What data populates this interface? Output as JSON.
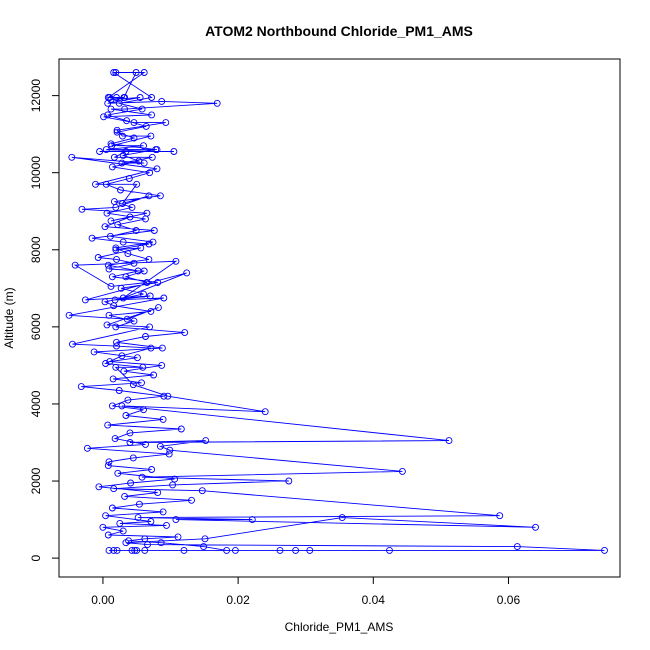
{
  "chart_data": {
    "type": "line",
    "title": "ATOM2 Northbound Chloride_PM1_AMS",
    "xlabel": "Chloride_PM1_AMS",
    "ylabel": "Altitude (m)",
    "xlim": [
      -0.0065,
      0.0765
    ],
    "ylim": [
      -490,
      12950
    ],
    "x_ticks": [
      0.0,
      0.02,
      0.04,
      0.06
    ],
    "x_tick_labels": [
      "0.00",
      "0.02",
      "0.04",
      "0.06"
    ],
    "y_ticks": [
      0,
      2000,
      4000,
      6000,
      8000,
      10000,
      12000
    ],
    "y_tick_labels": [
      "0",
      "2000",
      "4000",
      "6000",
      "8000",
      "10000",
      "12000"
    ],
    "grid": false,
    "legend": "none",
    "marker": "open-circle",
    "color": "#0000ff",
    "series": [
      {
        "x": [
          0.0019,
          0.0061,
          0.0008,
          0.002,
          0.0032,
          0.0012,
          0.0055,
          0.0007,
          0.0087,
          0.0169,
          0.0032,
          0.0012,
          0.0072,
          0.0001,
          0.0046,
          0.0093,
          0.0021,
          0.0029,
          0.0071,
          0.0013,
          0.006,
          0.0005,
          0.008,
          -0.0005,
          0.0105,
          0.0034,
          0.0017,
          0.0073,
          0.0028,
          0.0061,
          -0.0046,
          0.008,
          -0.0011,
          0.005,
          0.0029,
          0.0068,
          0.0019,
          -0.0031,
          0.0065,
          0.0012,
          0.004,
          0.0003,
          0.0076,
          -0.0016,
          0.003,
          0.0068,
          0.0019,
          0.0056,
          -0.0007,
          0.002,
          0.0046,
          0.0009,
          0.0061,
          0.0034,
          0.0065,
          0.0012,
          -0.0041,
          0.0108,
          0.003,
          0.0124,
          -0.0026,
          0.007,
          0.0018,
          0.009,
          -0.005,
          0.0036,
          0.0082,
          0.0006,
          0.0069,
          -0.0045,
          0.002,
          0.0071,
          0.0028,
          0.0004,
          0.0059,
          0.0019,
          0.0045,
          0.0096,
          0.024,
          0.0028,
          0.0512,
          0.004,
          0.0152,
          0.0085,
          0.0099,
          0.0443,
          0.0058,
          0.0275,
          0.0103,
          0.0016,
          0.0147,
          0.0587,
          0.0052,
          0.0221,
          0.0108,
          0.064,
          0.0354,
          0.0151,
          0.0034,
          0.0066,
          0.0613,
          0.0742,
          0.0062,
          0.005,
          0.0424,
          0.0043,
          0.0306,
          0.0016,
          0.0285,
          0.0009,
          0.0262,
          0.012,
          0.0021,
          0.0196,
          0.0047,
          0.0183,
          0.0149,
          0.0086,
          0.0038,
          0.0062,
          0.0111,
          0.0008,
          0.003,
          0.0,
          0.0094,
          0.0025,
          0.0071,
          0.0004,
          0.0089,
          0.0014,
          0.0054,
          0.0131,
          0.0032,
          0.0081,
          -0.0006,
          0.0041,
          0.0106,
          0.0022,
          0.0072,
          0.0008,
          0.0009,
          0.0045,
          0.0098,
          -0.0023,
          0.0063,
          0.0018,
          0.004,
          0.0116,
          0.0007,
          0.0089,
          0.0034,
          0.006,
          0.0014,
          0.0037,
          0.009,
          0.0024,
          -0.0032,
          0.0057,
          0.0015,
          0.0075,
          0.0031,
          0.0087,
          0.001,
          0.0051,
          -0.0013,
          0.0088,
          0.002,
          0.0063,
          0.0121,
          0.0019,
          0.0046,
          0.0009,
          0.0071,
          0.0016,
          0.0003,
          0.006,
          0.0027,
          0.0081,
          0.0014,
          0.0052,
          0.0008,
          0.0068,
          0.0037,
          0.0019,
          0.0074,
          0.0011,
          0.0049,
          0.0022,
          0.0063,
          0.0006,
          0.0043,
          0.0017,
          0.0085,
          0.0026,
          0.0005,
          0.0039,
          0.0069,
          0.0014,
          0.0053,
          0.003,
          0.0078,
          0.0012,
          0.0046,
          0.0021,
          0.0064,
          0.0035,
          0.0007,
          0.0058,
          0.0024,
          0.0072,
          0.0016,
          0.0049,
          0.0031,
          0.001
        ],
        "y": [
          12600,
          12600,
          11950,
          11950,
          11950,
          11900,
          11950,
          11800,
          11850,
          11800,
          11650,
          11650,
          11500,
          11450,
          11300,
          11300,
          11100,
          10950,
          10950,
          10700,
          10700,
          10600,
          10600,
          10550,
          10550,
          10550,
          10400,
          10400,
          10250,
          10250,
          10400,
          10100,
          9700,
          9700,
          9200,
          9400,
          9100,
          9050,
          8950,
          8750,
          8850,
          8600,
          8500,
          8300,
          8200,
          8150,
          8000,
          8050,
          7800,
          7750,
          7650,
          7500,
          7450,
          7300,
          7150,
          7050,
          7600,
          7700,
          6750,
          7400,
          6700,
          6800,
          6700,
          6750,
          6300,
          6200,
          6500,
          6050,
          6000,
          5550,
          5500,
          5450,
          5250,
          5050,
          4950,
          4950,
          4500,
          4200,
          3800,
          3950,
          3050,
          3000,
          3050,
          2900,
          2800,
          2250,
          2100,
          2000,
          1900,
          1800,
          1750,
          1100,
          1050,
          1000,
          1000,
          800,
          1050,
          500,
          400,
          350,
          300,
          200,
          200,
          200,
          200,
          200,
          200,
          200,
          200,
          200,
          200,
          200,
          200,
          200,
          200,
          200,
          300,
          400,
          450,
          500,
          550,
          600,
          700,
          800,
          850,
          900,
          950,
          1100,
          1200,
          1300,
          1400,
          1500,
          1600,
          1700,
          1850,
          1950,
          2050,
          2200,
          2300,
          2400,
          2500,
          2600,
          2700,
          2850,
          2950,
          3100,
          3250,
          3350,
          3450,
          3600,
          3700,
          3850,
          3950,
          4100,
          4200,
          4350,
          4450,
          4550,
          4650,
          4750,
          4850,
          5000,
          5100,
          5200,
          5350,
          5450,
          5600,
          5750,
          5850,
          6000,
          6150,
          6300,
          6400,
          6550,
          6650,
          6850,
          7000,
          7150,
          7300,
          7450,
          7600,
          7750,
          7900,
          8050,
          8200,
          8350,
          8500,
          8650,
          8800,
          8950,
          9100,
          9250,
          9400,
          9550,
          9700,
          9850,
          10000,
          10150,
          10300,
          10450,
          10600,
          10750,
          10900,
          11050,
          11200,
          11350,
          11500,
          11650,
          11800,
          11950,
          12600,
          12600,
          11950,
          11950
        ]
      }
    ]
  }
}
